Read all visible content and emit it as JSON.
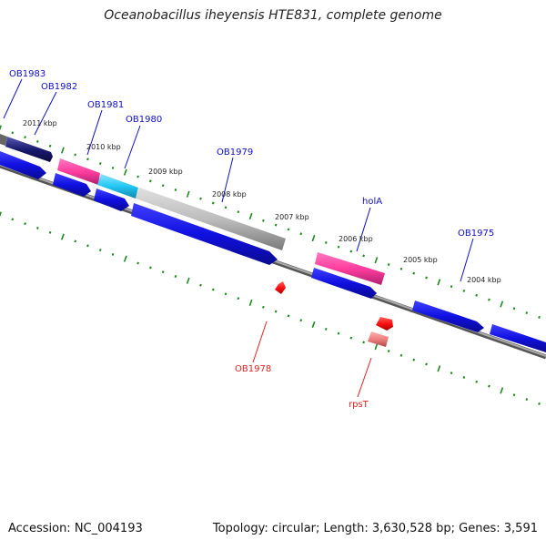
{
  "title": "Oceanobacillus iheyensis HTE831, complete genome",
  "footer": {
    "accession": "Accession: NC_004193",
    "summary": "Topology: circular; Length: 3,630,528 bp; Genes: 3,591"
  },
  "colors": {
    "forward_gene": "#1010e0",
    "reverse_gene": "#ff2020",
    "rna_gene": "#ff3d9e",
    "highlight_gene": "#22c8f4",
    "gray_gene": "#b8b8b8",
    "dark_gene": "#1a1a70",
    "backbone": "#888888",
    "ticks": "#1e8a1e",
    "label_forward": "#1010c8",
    "label_reverse": "#e02020"
  },
  "kbp_labels": [
    "2011 kbp",
    "2010 kbp",
    "2009 kbp",
    "2008 kbp",
    "2007 kbp",
    "2006 kbp",
    "2005 kbp",
    "2004 kbp"
  ],
  "gene_labels": {
    "ob1983": "OB1983",
    "ob1982": "OB1982",
    "ob1981": "OB1981",
    "ob1980": "OB1980",
    "ob1979": "OB1979",
    "hola": "holA",
    "ob1975": "OB1975",
    "ob1978": "OB1978",
    "rpst": "rpsT"
  }
}
